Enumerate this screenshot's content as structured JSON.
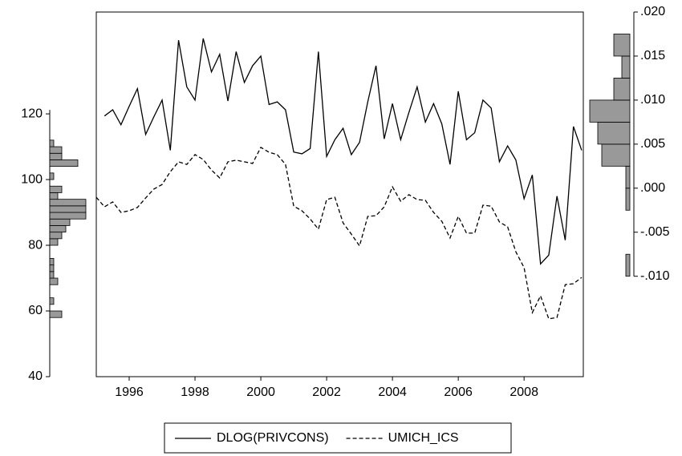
{
  "chart_data": [
    {
      "type": "line",
      "x": [
        1995,
        1995.25,
        1995.5,
        1995.75,
        1996,
        1996.25,
        1996.5,
        1996.75,
        1997,
        1997.25,
        1997.5,
        1997.75,
        1998,
        1998.25,
        1998.5,
        1998.75,
        1999,
        1999.25,
        1999.5,
        1999.75,
        2000,
        2000.25,
        2000.5,
        2000.75,
        2001,
        2001.25,
        2001.5,
        2001.75,
        2002,
        2002.25,
        2002.5,
        2002.75,
        2003,
        2003.25,
        2003.5,
        2003.75,
        2004,
        2004.25,
        2004.5,
        2004.75,
        2005,
        2005.25,
        2005.5,
        2005.75,
        2006,
        2006.25,
        2006.5,
        2006.75,
        2007,
        2007.25,
        2007.5,
        2007.75,
        2008,
        2008.25,
        2008.5,
        2008.75,
        2009,
        2009.25,
        2009.5,
        2009.75
      ],
      "series": [
        {
          "name": "DLOG(PRIVCONS)",
          "color": "#000000",
          "line_style": "solid",
          "axis": "y2",
          "values": [
            null,
            0.0082,
            0.0089,
            0.0072,
            0.0093,
            0.0113,
            0.0061,
            0.0081,
            0.01,
            0.0043,
            0.0168,
            0.0115,
            0.01,
            0.017,
            0.0132,
            0.0152,
            0.0099,
            0.0155,
            0.012,
            0.0139,
            0.015,
            0.0095,
            0.0098,
            0.0089,
            0.0041,
            0.0039,
            0.0045,
            0.0155,
            0.0036,
            0.0055,
            0.0068,
            0.0038,
            0.0052,
            0.0098,
            0.0139,
            0.0056,
            0.0096,
            0.0055,
            0.0086,
            0.0115,
            0.0075,
            0.0096,
            0.0073,
            0.0027,
            0.011,
            0.0055,
            0.0063,
            0.01,
            0.0091,
            0.003,
            0.0048,
            0.0032,
            -0.0012,
            0.0015,
            -0.0086,
            -0.0076,
            -0.0009,
            -0.0059,
            0.007,
            0.0043
          ]
        },
        {
          "name": "UMICH_ICS",
          "color": "#000000",
          "line_style": "dashed",
          "values": [
            94.6,
            91.7,
            93.2,
            90.0,
            90.5,
            91.5,
            94.4,
            97.1,
            98.5,
            102.4,
            105.4,
            104.6,
            107.6,
            106.1,
            102.9,
            100.5,
            105.4,
            105.9,
            105.4,
            104.9,
            109.8,
            108.3,
            107.6,
            104.6,
            91.9,
            90.5,
            88.0,
            84.9,
            93.9,
            94.6,
            86.8,
            83.4,
            79.8,
            88.8,
            89.0,
            91.7,
            97.8,
            93.4,
            95.4,
            93.9,
            93.7,
            90.0,
            87.3,
            82.2,
            88.8,
            83.7,
            83.7,
            92.2,
            91.9,
            87.1,
            85.6,
            78.0,
            73.2,
            59.5,
            64.6,
            57.6,
            58.0,
            68.0,
            68.3,
            70.2
          ]
        }
      ],
      "xlim": [
        1995,
        2009.8
      ],
      "xticks": [
        1996,
        1998,
        2000,
        2002,
        2004,
        2006,
        2008
      ],
      "ylim": [
        40,
        151
      ],
      "yticks": [
        40,
        60,
        80,
        100,
        120
      ],
      "y2lim": [
        -0.0214,
        0.02
      ],
      "y2ticks": [
        {
          "value": -0.01,
          "label": "-.010"
        },
        {
          "value": -0.005,
          "label": "-.005"
        },
        {
          "value": 0,
          "label": ".000"
        },
        {
          "value": 0.005,
          "label": ".005"
        },
        {
          "value": 0.01,
          "label": ".010"
        },
        {
          "value": 0.015,
          "label": ".015"
        },
        {
          "value": 0.02,
          "label": ".020"
        }
      ],
      "legend": "bottom"
    },
    {
      "type": "histogram",
      "color": "#999999",
      "bins": [
        58,
        60,
        62,
        64,
        66,
        68,
        70,
        72,
        74,
        76,
        78,
        80,
        82,
        84,
        86,
        88,
        90,
        92,
        94,
        96,
        98,
        100,
        102,
        104,
        106,
        108,
        110,
        112
      ],
      "values": [
        3,
        0,
        1,
        0,
        0,
        2,
        1,
        1,
        1,
        0,
        0,
        2,
        3,
        4,
        5,
        9,
        9,
        9,
        2,
        3,
        0,
        1,
        0,
        7,
        3,
        3,
        1
      ]
    },
    {
      "type": "histogram",
      "color": "#999999",
      "bins": [
        -0.01,
        -0.0075,
        -0.005,
        -0.0025,
        0,
        0.0025,
        0.005,
        0.0075,
        0.01,
        0.0125,
        0.015,
        0.0175
      ],
      "values": [
        1,
        0,
        0,
        1,
        1,
        7,
        8,
        10,
        4,
        2,
        4
      ]
    }
  ]
}
